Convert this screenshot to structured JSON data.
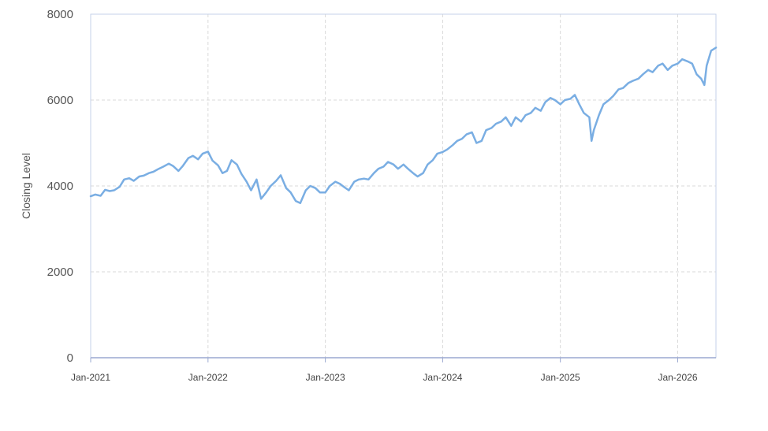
{
  "chart_data": {
    "type": "line",
    "title": "",
    "xlabel": "",
    "ylabel": "Closing Level",
    "ylim": [
      0,
      8000
    ],
    "yticks": [
      0,
      2000,
      4000,
      6000,
      8000
    ],
    "ytick_labels": [
      "0",
      "2000",
      "4000",
      "6000",
      "8000"
    ],
    "xlim": [
      "2021-01-01",
      "2026-04-30"
    ],
    "xticks": [
      "2021-01-01",
      "2022-01-01",
      "2023-01-01",
      "2024-01-01",
      "2025-01-01",
      "2026-01-01"
    ],
    "xtick_labels": [
      "Jan-2021",
      "Jan-2022",
      "Jan-2023",
      "Jan-2024",
      "Jan-2025",
      "Jan-2026"
    ],
    "grid": true,
    "legend": "none",
    "series_color": "#7aaee3",
    "series": [
      {
        "x": [
          "2021-01-01",
          "2021-01-15",
          "2021-02-01",
          "2021-02-15",
          "2021-03-01",
          "2021-03-15",
          "2021-04-01",
          "2021-04-15",
          "2021-05-01",
          "2021-05-15",
          "2021-06-01",
          "2021-06-15",
          "2021-07-01",
          "2021-07-15",
          "2021-08-01",
          "2021-08-15",
          "2021-09-01",
          "2021-09-15",
          "2021-10-01",
          "2021-10-15",
          "2021-11-01",
          "2021-11-15",
          "2021-12-01",
          "2021-12-15",
          "2022-01-01",
          "2022-01-15",
          "2022-02-01",
          "2022-02-15",
          "2022-03-01",
          "2022-03-15",
          "2022-04-01",
          "2022-04-15",
          "2022-05-01",
          "2022-05-15",
          "2022-06-01",
          "2022-06-15",
          "2022-07-01",
          "2022-07-15",
          "2022-08-01",
          "2022-08-15",
          "2022-09-01",
          "2022-09-15",
          "2022-10-01",
          "2022-10-15",
          "2022-11-01",
          "2022-11-15",
          "2022-12-01",
          "2022-12-15",
          "2023-01-01",
          "2023-01-15",
          "2023-02-01",
          "2023-02-15",
          "2023-03-01",
          "2023-03-15",
          "2023-04-01",
          "2023-04-15",
          "2023-05-01",
          "2023-05-15",
          "2023-06-01",
          "2023-06-15",
          "2023-07-01",
          "2023-07-15",
          "2023-08-01",
          "2023-08-15",
          "2023-09-01",
          "2023-09-15",
          "2023-10-01",
          "2023-10-15",
          "2023-11-01",
          "2023-11-15",
          "2023-12-01",
          "2023-12-15",
          "2024-01-01",
          "2024-01-15",
          "2024-02-01",
          "2024-02-15",
          "2024-03-01",
          "2024-03-15",
          "2024-04-01",
          "2024-04-15",
          "2024-05-01",
          "2024-05-15",
          "2024-06-01",
          "2024-06-15",
          "2024-07-01",
          "2024-07-15",
          "2024-08-01",
          "2024-08-15",
          "2024-09-01",
          "2024-09-15",
          "2024-10-01",
          "2024-10-15",
          "2024-11-01",
          "2024-11-15",
          "2024-12-01",
          "2024-12-15",
          "2025-01-01",
          "2025-01-15",
          "2025-02-01",
          "2025-02-15",
          "2025-03-01",
          "2025-03-15",
          "2025-04-01",
          "2025-04-08",
          "2025-04-15",
          "2025-05-01",
          "2025-05-15",
          "2025-06-01",
          "2025-06-15",
          "2025-07-01",
          "2025-07-15",
          "2025-08-01",
          "2025-08-15",
          "2025-09-01",
          "2025-09-15",
          "2025-10-01",
          "2025-10-15",
          "2025-11-01",
          "2025-11-15",
          "2025-12-01",
          "2025-12-15",
          "2026-01-01",
          "2026-01-15",
          "2026-02-01",
          "2026-02-15",
          "2026-03-01",
          "2026-03-15",
          "2026-03-25",
          "2026-04-01",
          "2026-04-15",
          "2026-04-30"
        ],
        "y": [
          3760,
          3800,
          3770,
          3910,
          3880,
          3900,
          3980,
          4150,
          4180,
          4120,
          4220,
          4240,
          4300,
          4330,
          4400,
          4450,
          4520,
          4460,
          4350,
          4470,
          4650,
          4700,
          4620,
          4750,
          4800,
          4590,
          4480,
          4300,
          4350,
          4600,
          4500,
          4280,
          4100,
          3900,
          4150,
          3700,
          3850,
          4000,
          4120,
          4250,
          3950,
          3850,
          3650,
          3600,
          3900,
          4000,
          3950,
          3850,
          3850,
          4000,
          4100,
          4050,
          3970,
          3900,
          4100,
          4150,
          4170,
          4150,
          4300,
          4400,
          4450,
          4560,
          4500,
          4400,
          4500,
          4400,
          4300,
          4220,
          4300,
          4500,
          4600,
          4750,
          4790,
          4850,
          4950,
          5050,
          5100,
          5200,
          5250,
          5000,
          5050,
          5300,
          5350,
          5450,
          5500,
          5600,
          5400,
          5600,
          5500,
          5650,
          5700,
          5820,
          5750,
          5950,
          6050,
          6000,
          5900,
          6000,
          6030,
          6120,
          5900,
          5700,
          5600,
          5050,
          5300,
          5650,
          5900,
          6000,
          6100,
          6250,
          6280,
          6400,
          6450,
          6500,
          6600,
          6700,
          6650,
          6800,
          6850,
          6700,
          6800,
          6850,
          6950,
          6900,
          6850,
          6600,
          6500,
          6350,
          6800,
          7150,
          7220
        ]
      }
    ]
  }
}
